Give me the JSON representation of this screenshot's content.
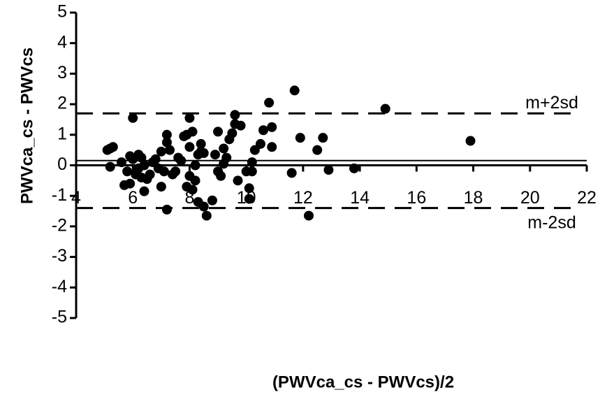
{
  "chart_data": {
    "type": "scatter",
    "x_label": "(PWVca_cs - PWVcs)/2",
    "y_label": "PWVca_cs - PWVcs",
    "xlim": [
      4,
      22
    ],
    "xticks": [
      4,
      6,
      8,
      10,
      12,
      14,
      16,
      18,
      20,
      22
    ],
    "ylim": [
      -5,
      5
    ],
    "yticks": [
      -5,
      -4,
      -3,
      -2,
      -1,
      0,
      1,
      2,
      3,
      4,
      5
    ],
    "mean_line": 0.11,
    "reference_lines": [
      {
        "label": "m+2sd",
        "value": 1.7
      },
      {
        "label": "m-2sd",
        "value": -1.4
      }
    ],
    "color": "#000000",
    "series": [
      {
        "x": [
          5.1,
          5.2,
          5.3,
          5.2,
          5.6,
          5.7,
          5.8,
          5.9,
          6.0,
          5.9,
          6.0,
          6.1,
          6.2,
          6.2,
          6.3,
          6.3,
          6.4,
          6.4,
          6.5,
          6.6,
          6.7,
          6.8,
          6.9,
          7.0,
          7.0,
          7.1,
          7.2,
          7.2,
          7.2,
          7.3,
          7.4,
          7.5,
          7.6,
          7.7,
          7.8,
          7.9,
          7.9,
          8.0,
          8.0,
          8.0,
          8.1,
          8.1,
          8.2,
          8.2,
          8.3,
          8.3,
          8.4,
          8.4,
          8.5,
          8.5,
          8.6,
          8.8,
          8.9,
          9.0,
          9.0,
          9.1,
          9.2,
          9.2,
          9.3,
          9.4,
          9.5,
          9.6,
          9.6,
          9.7,
          9.8,
          10.0,
          10.1,
          10.1,
          10.2,
          10.2,
          10.3,
          10.5,
          10.6,
          10.8,
          10.9,
          10.9,
          11.6,
          11.7,
          11.9,
          12.2,
          12.5,
          12.7,
          12.9,
          13.8,
          14.9,
          17.9
        ],
        "values": [
          0.5,
          0.55,
          0.6,
          -0.05,
          0.1,
          -0.65,
          -0.2,
          -0.6,
          1.55,
          0.3,
          0.2,
          -0.3,
          0.35,
          -0.1,
          0.25,
          -0.4,
          -0.85,
          0.0,
          -0.45,
          -0.3,
          0.1,
          0.2,
          -0.1,
          -0.7,
          0.45,
          -0.2,
          1.0,
          0.75,
          -1.45,
          0.5,
          -0.3,
          -0.2,
          0.25,
          0.15,
          0.95,
          1.0,
          -0.7,
          0.6,
          1.55,
          -0.35,
          1.1,
          -0.8,
          -0.5,
          0.0,
          0.35,
          -1.2,
          0.7,
          0.45,
          0.4,
          -1.35,
          -1.65,
          -1.15,
          0.35,
          1.1,
          -0.2,
          -0.35,
          0.05,
          0.55,
          0.25,
          0.85,
          1.05,
          1.35,
          1.65,
          -0.5,
          1.3,
          -0.2,
          -0.75,
          -1.1,
          0.1,
          -0.2,
          0.5,
          0.7,
          1.15,
          2.05,
          1.25,
          0.6,
          -0.25,
          2.45,
          0.9,
          -1.65,
          0.5,
          0.9,
          -0.15,
          -0.1,
          1.85,
          0.8
        ]
      }
    ]
  }
}
